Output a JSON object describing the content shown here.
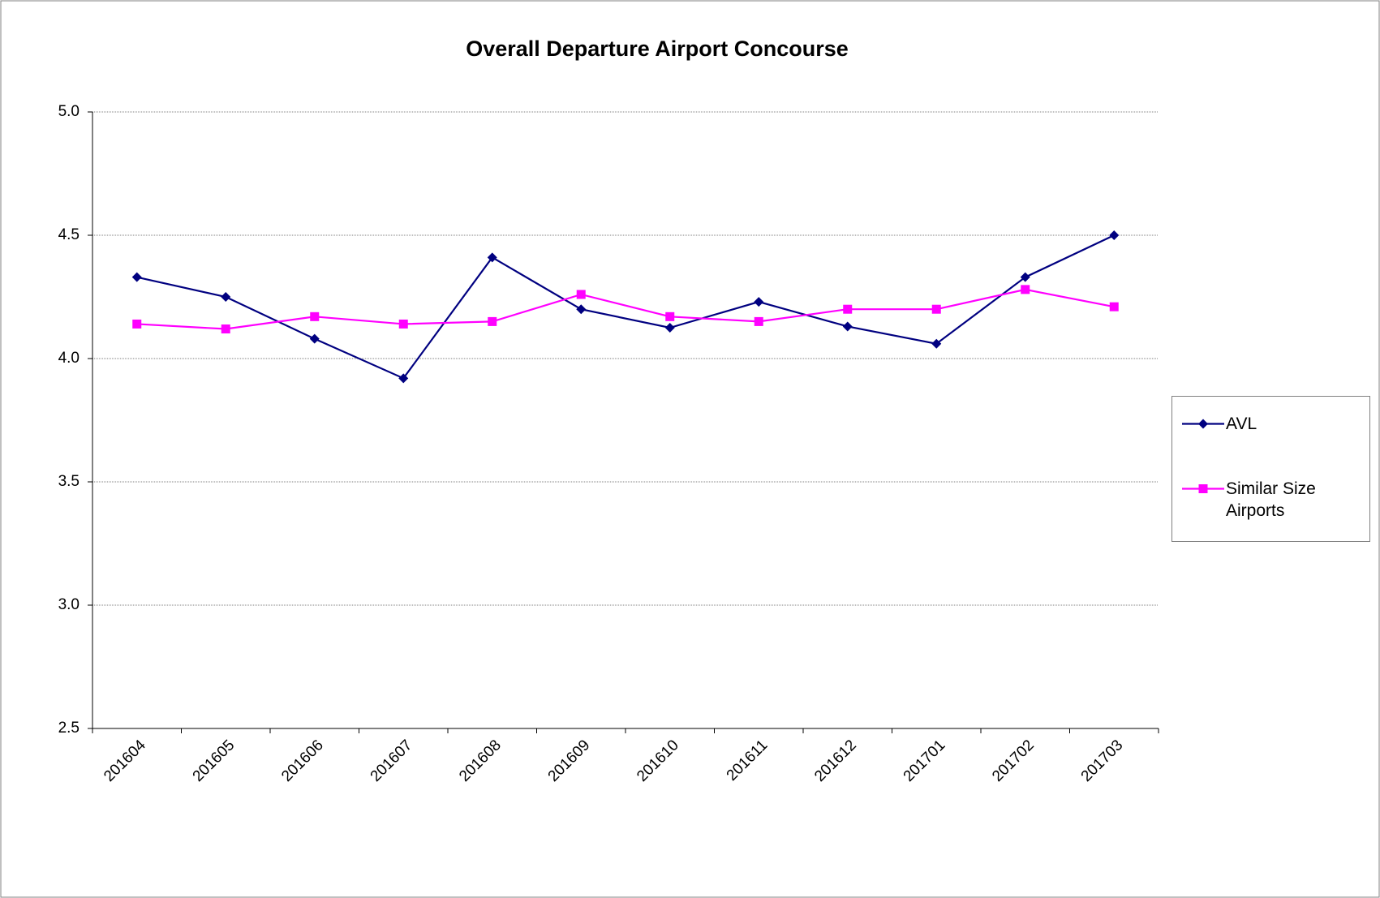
{
  "chart_data": {
    "type": "line",
    "title": "Overall Departure Airport Concourse",
    "categories": [
      "201604",
      "201605",
      "201606",
      "201607",
      "201608",
      "201609",
      "201610",
      "201611",
      "201612",
      "201701",
      "201702",
      "201703"
    ],
    "series": [
      {
        "name": "AVL",
        "color": "#000080",
        "marker": "diamond",
        "values": [
          4.33,
          4.25,
          4.08,
          3.92,
          4.41,
          4.2,
          4.125,
          4.23,
          4.13,
          4.06,
          4.33,
          4.5
        ]
      },
      {
        "name": "Similar Size Airports",
        "color": "#FF00FF",
        "marker": "square",
        "values": [
          4.14,
          4.12,
          4.17,
          4.14,
          4.15,
          4.26,
          4.17,
          4.15,
          4.2,
          4.2,
          4.28,
          4.21
        ]
      }
    ],
    "ylim": [
      2.5,
      5
    ],
    "yticks": [
      2.5,
      {
        "value": 3,
        "label": "3.0"
      },
      3.5,
      {
        "value": 4,
        "label": "4.0"
      },
      4.5,
      {
        "value": 5,
        "label": "5.0"
      }
    ],
    "grid": true,
    "legend": "right"
  }
}
